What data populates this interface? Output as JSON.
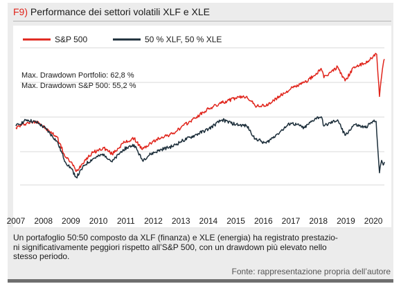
{
  "figure": {
    "label": "F9)",
    "title": "Performance dei settori volatili XLF e XLE",
    "caption": "Un portafoglio 50:50 composto da XLF (finanza) e XLE (energia) ha registrato prestazioni significativamente peggiori rispetto all’S&P 500, con un drawdown più elevato nello stesso periodo.",
    "caption_lines": [
      "Un portafoglio 50:50 composto da XLF (finanza) e XLE (energia) ha registrato prestazio-",
      "ni significativamente peggiori rispetto all’S&P 500, con un drawdown più elevato nello",
      "stesso periodo."
    ],
    "source": "Fonte: rappresentazione propria dell’autore"
  },
  "colors": {
    "sp500": "#e0241b",
    "portfolio": "#1c2e3a",
    "grid": "#d9d9d9",
    "title_accent": "#e0241b"
  },
  "chart_data": {
    "type": "line",
    "title": "Performance dei settori volatili XLF e XLE",
    "xlabel": "",
    "ylabel": "",
    "x_ticks": [
      "2007",
      "2008",
      "2009",
      "2010",
      "2011",
      "2012",
      "2013",
      "2014",
      "2015",
      "2016",
      "2017",
      "2018",
      "2019",
      "2020"
    ],
    "xlim": [
      2006.9,
      2020.4
    ],
    "ylim": [
      0,
      100
    ],
    "y_axis_labels_shown": false,
    "grid": {
      "horizontal": true,
      "vertical": false
    },
    "legend": {
      "placement": "top-left"
    },
    "annotations": [
      "Max. Drawdown Portfolio: 62,8 %",
      "Max. Drawdown S&P 500: 55,2 %"
    ],
    "series": [
      {
        "name": "S&P 500",
        "color": "#e0241b",
        "points": [
          [
            2007.0,
            47
          ],
          [
            2007.4,
            50
          ],
          [
            2007.8,
            51
          ],
          [
            2008.1,
            46
          ],
          [
            2008.5,
            41
          ],
          [
            2008.8,
            28
          ],
          [
            2009.0,
            25
          ],
          [
            2009.2,
            19
          ],
          [
            2009.5,
            26
          ],
          [
            2009.8,
            31
          ],
          [
            2010.2,
            34
          ],
          [
            2010.5,
            30
          ],
          [
            2010.9,
            37
          ],
          [
            2011.3,
            40
          ],
          [
            2011.6,
            33
          ],
          [
            2011.9,
            37
          ],
          [
            2012.3,
            41
          ],
          [
            2012.7,
            43
          ],
          [
            2013.0,
            47
          ],
          [
            2013.5,
            53
          ],
          [
            2014.0,
            59
          ],
          [
            2014.5,
            63
          ],
          [
            2015.0,
            66
          ],
          [
            2015.4,
            67
          ],
          [
            2015.7,
            61
          ],
          [
            2016.1,
            61
          ],
          [
            2016.5,
            66
          ],
          [
            2017.0,
            72
          ],
          [
            2017.5,
            76
          ],
          [
            2017.9,
            81
          ],
          [
            2018.1,
            85
          ],
          [
            2018.2,
            79
          ],
          [
            2018.7,
            86
          ],
          [
            2018.97,
            77
          ],
          [
            2019.3,
            86
          ],
          [
            2019.7,
            88
          ],
          [
            2020.0,
            93
          ],
          [
            2020.12,
            94
          ],
          [
            2020.22,
            67
          ],
          [
            2020.3,
            80
          ],
          [
            2020.36,
            88
          ],
          [
            2020.4,
            91
          ]
        ]
      },
      {
        "name": "50 % XLF, 50 % XLE",
        "color": "#1c2e3a",
        "points": [
          [
            2007.0,
            48
          ],
          [
            2007.4,
            52
          ],
          [
            2007.8,
            50
          ],
          [
            2008.1,
            46
          ],
          [
            2008.5,
            38
          ],
          [
            2008.8,
            25
          ],
          [
            2009.0,
            21
          ],
          [
            2009.2,
            15
          ],
          [
            2009.5,
            23
          ],
          [
            2009.8,
            27
          ],
          [
            2010.2,
            30
          ],
          [
            2010.5,
            25
          ],
          [
            2010.9,
            33
          ],
          [
            2011.3,
            36
          ],
          [
            2011.6,
            26
          ],
          [
            2011.9,
            30
          ],
          [
            2012.3,
            33
          ],
          [
            2012.7,
            35
          ],
          [
            2013.0,
            38
          ],
          [
            2013.5,
            42
          ],
          [
            2014.0,
            46
          ],
          [
            2014.5,
            52
          ],
          [
            2015.0,
            49
          ],
          [
            2015.4,
            48
          ],
          [
            2015.7,
            40
          ],
          [
            2016.1,
            37
          ],
          [
            2016.5,
            43
          ],
          [
            2017.0,
            50
          ],
          [
            2017.5,
            47
          ],
          [
            2017.9,
            53
          ],
          [
            2018.1,
            54
          ],
          [
            2018.2,
            48
          ],
          [
            2018.7,
            52
          ],
          [
            2018.97,
            42
          ],
          [
            2019.3,
            49
          ],
          [
            2019.7,
            47
          ],
          [
            2020.0,
            51
          ],
          [
            2020.1,
            51
          ],
          [
            2020.22,
            18
          ],
          [
            2020.3,
            26
          ],
          [
            2020.36,
            23
          ],
          [
            2020.4,
            25
          ]
        ]
      }
    ]
  }
}
